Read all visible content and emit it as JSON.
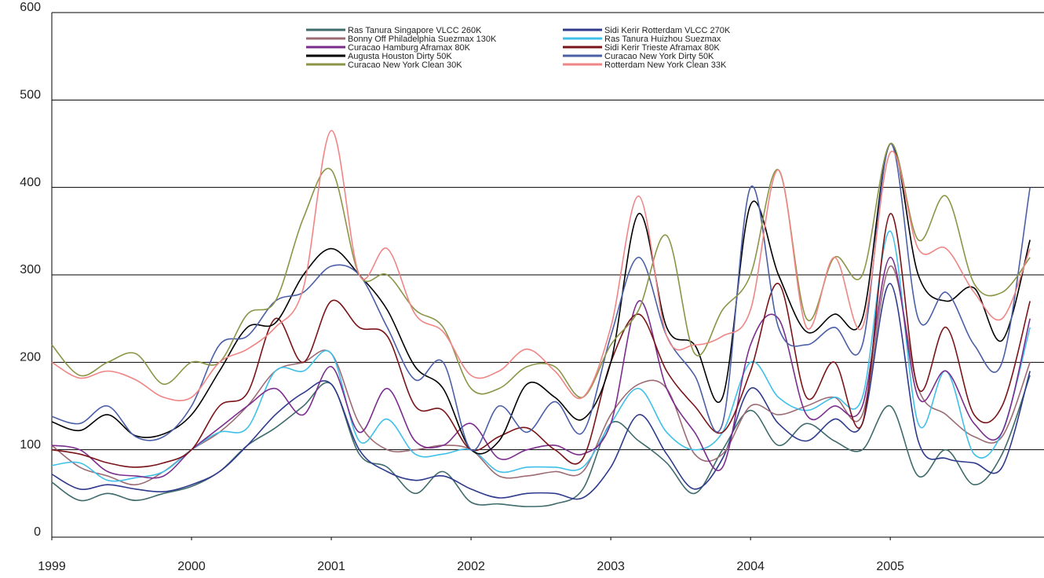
{
  "chart_data": {
    "type": "line",
    "x": [
      1999.0,
      1999.2,
      1999.4,
      1999.6,
      1999.8,
      2000.0,
      2000.2,
      2000.4,
      2000.6,
      2000.8,
      2001.0,
      2001.2,
      2001.4,
      2001.6,
      2001.8,
      2002.0,
      2002.2,
      2002.4,
      2002.6,
      2002.8,
      2003.0,
      2003.2,
      2003.4,
      2003.6,
      2003.8,
      2004.0,
      2004.2,
      2004.4,
      2004.6,
      2004.8,
      2005.0,
      2005.2,
      2005.4,
      2005.6,
      2005.8,
      2006.0
    ],
    "xlim": [
      1999,
      2006.1
    ],
    "xticks": [
      1999,
      2000,
      2001,
      2002,
      2003,
      2004,
      2005
    ],
    "ylim": [
      0,
      600
    ],
    "yticks": [
      0,
      100,
      200,
      300,
      400,
      500,
      600
    ],
    "grid": true,
    "series": [
      {
        "name": "Ras Tanura Singapore VLCC 260K",
        "color": "#3f6b6b",
        "values": [
          63,
          42,
          50,
          42,
          50,
          58,
          75,
          105,
          125,
          150,
          175,
          95,
          80,
          50,
          75,
          40,
          38,
          35,
          38,
          55,
          130,
          110,
          85,
          50,
          100,
          145,
          105,
          130,
          110,
          100,
          150,
          70,
          100,
          60,
          95,
          185
        ]
      },
      {
        "name": "Sidi Kerir Rotterdam VLCC 270K",
        "color": "#2e3a8c",
        "values": [
          72,
          55,
          60,
          55,
          52,
          60,
          75,
          105,
          140,
          165,
          175,
          100,
          75,
          65,
          70,
          55,
          45,
          50,
          50,
          45,
          80,
          140,
          95,
          55,
          90,
          170,
          130,
          110,
          135,
          130,
          290,
          110,
          90,
          85,
          80,
          190
        ]
      },
      {
        "name": "Bonny Off Philadelphia Suezmax 130K",
        "color": "#9c6b73",
        "values": [
          105,
          80,
          70,
          60,
          75,
          100,
          120,
          150,
          190,
          200,
          210,
          130,
          100,
          100,
          105,
          100,
          70,
          70,
          75,
          75,
          140,
          175,
          170,
          95,
          95,
          150,
          140,
          150,
          160,
          140,
          310,
          170,
          140,
          115,
          115,
          200
        ]
      },
      {
        "name": "Ras Tanura Huizhou Suezmax",
        "color": "#3fc0e8",
        "values": [
          82,
          85,
          65,
          68,
          75,
          100,
          120,
          125,
          190,
          190,
          210,
          110,
          135,
          95,
          95,
          100,
          75,
          80,
          80,
          80,
          130,
          170,
          120,
          100,
          120,
          200,
          160,
          145,
          160,
          160,
          350,
          130,
          190,
          95,
          120,
          240
        ]
      },
      {
        "name": "Curacao Hamburg Aframax 80K",
        "color": "#7b2d8e",
        "values": [
          105,
          100,
          75,
          70,
          70,
          100,
          125,
          150,
          170,
          140,
          195,
          120,
          170,
          110,
          105,
          130,
          90,
          100,
          105,
          95,
          130,
          270,
          170,
          120,
          80,
          220,
          250,
          140,
          150,
          150,
          320,
          160,
          190,
          130,
          120,
          250
        ]
      },
      {
        "name": "Sidi Kerir Trieste Aframax 80K",
        "color": "#7a1418",
        "values": [
          100,
          95,
          85,
          80,
          85,
          100,
          150,
          165,
          250,
          200,
          270,
          240,
          230,
          150,
          145,
          100,
          115,
          125,
          100,
          90,
          200,
          255,
          190,
          150,
          120,
          190,
          290,
          160,
          200,
          130,
          370,
          170,
          240,
          140,
          150,
          270
        ]
      },
      {
        "name": "Augusta Houston Dirty 50K",
        "color": "#000000",
        "values": [
          132,
          122,
          140,
          116,
          118,
          140,
          190,
          240,
          245,
          300,
          330,
          300,
          260,
          195,
          170,
          100,
          110,
          175,
          160,
          135,
          200,
          370,
          240,
          220,
          160,
          380,
          300,
          235,
          255,
          250,
          450,
          300,
          270,
          285,
          225,
          340
        ]
      },
      {
        "name": "Curacao New York Dirty 50K",
        "color": "#4a5fa8",
        "values": [
          138,
          130,
          150,
          115,
          115,
          150,
          220,
          230,
          270,
          280,
          310,
          300,
          240,
          180,
          200,
          100,
          150,
          120,
          155,
          120,
          230,
          320,
          230,
          185,
          130,
          400,
          240,
          220,
          240,
          220,
          450,
          250,
          280,
          220,
          200,
          400
        ]
      },
      {
        "name": "Curacao New York Clean 30K",
        "color": "#8c9446",
        "values": [
          220,
          185,
          200,
          210,
          175,
          200,
          200,
          255,
          270,
          365,
          420,
          300,
          300,
          260,
          240,
          170,
          170,
          195,
          195,
          160,
          220,
          260,
          345,
          210,
          260,
          300,
          420,
          250,
          320,
          300,
          450,
          340,
          390,
          290,
          280,
          320
        ]
      },
      {
        "name": "Rotterdam New York Clean 33K",
        "color": "#f08585",
        "values": [
          200,
          182,
          190,
          180,
          160,
          160,
          200,
          215,
          240,
          285,
          465,
          300,
          330,
          255,
          235,
          185,
          190,
          215,
          190,
          160,
          240,
          390,
          230,
          220,
          230,
          260,
          420,
          240,
          320,
          240,
          440,
          330,
          330,
          280,
          250,
          330
        ]
      }
    ]
  }
}
